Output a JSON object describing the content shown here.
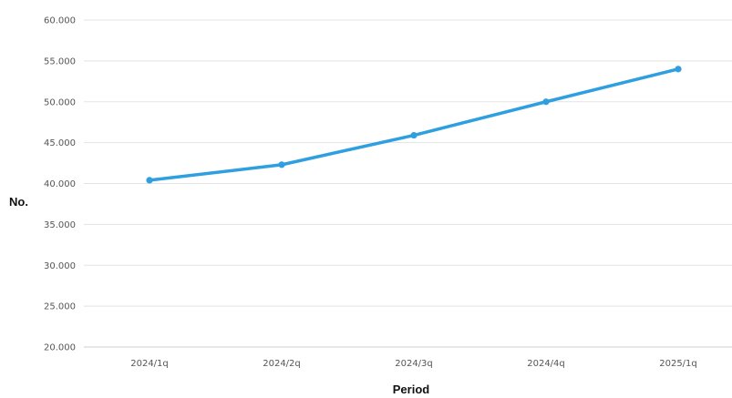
{
  "chart_data": {
    "type": "line",
    "title": "",
    "xlabel": "Period",
    "ylabel": "No.",
    "categories": [
      "2024/1q",
      "2024/2q",
      "2024/3q",
      "2024/4q",
      "2025/1q"
    ],
    "series": [
      {
        "values": [
          40.4,
          42.3,
          45.9,
          50.0,
          54.0
        ],
        "color": "#2f9fe0"
      }
    ],
    "ylim": [
      20,
      60
    ],
    "yticks": [
      {
        "value": 20,
        "label": "20.000"
      },
      {
        "value": 25,
        "label": "25.000"
      },
      {
        "value": 30,
        "label": "30.000"
      },
      {
        "value": 35,
        "label": "35.000"
      },
      {
        "value": 40,
        "label": "40.000"
      },
      {
        "value": 45,
        "label": "45.000"
      },
      {
        "value": 50,
        "label": "50.000"
      },
      {
        "value": 55,
        "label": "55.000"
      },
      {
        "value": 60,
        "label": "60.000"
      }
    ],
    "grid": true,
    "legend": "none"
  }
}
